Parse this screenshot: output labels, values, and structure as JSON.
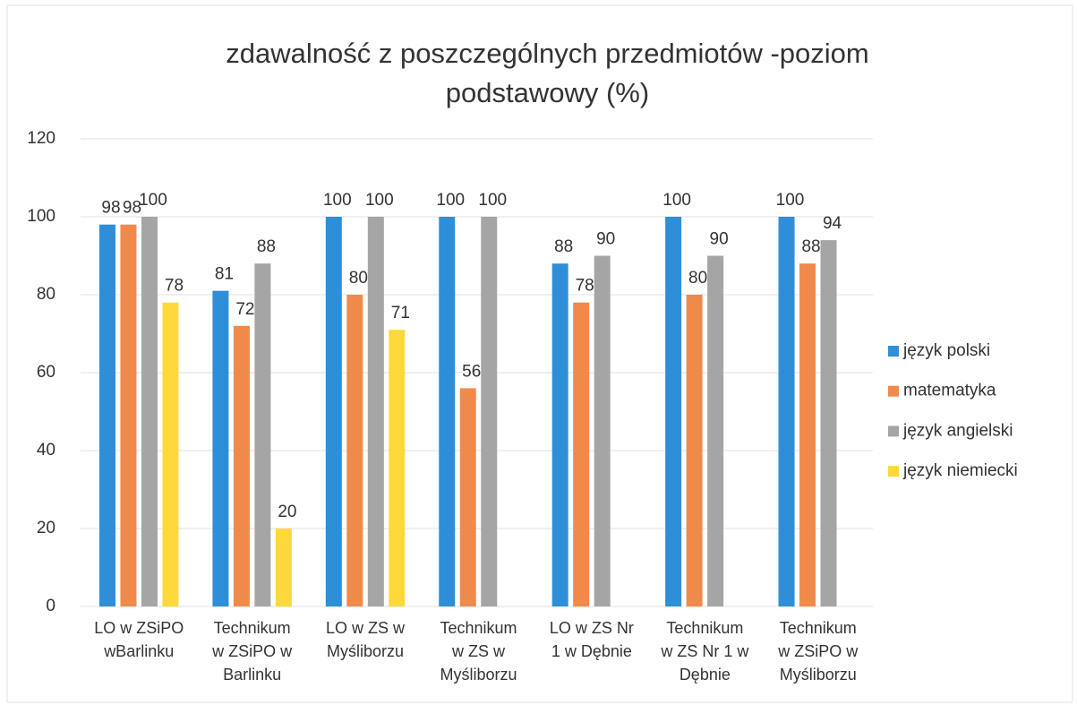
{
  "chart_data": {
    "type": "bar",
    "title": "zdawalność z poszczególnych przedmiotów -poziom\npodstawowy (%)",
    "categories": [
      "LO w ZSiPO\nwBarlinku",
      "Technikum\nw ZSiPO w\nBarlinku",
      "LO w ZS w\nMyśliborzu",
      "Technikum\nw ZS w\nMyśliborzu",
      "LO w ZS Nr\n1 w Dębnie",
      "Technikum\nw ZS Nr 1 w\nDębnie",
      "Technikum\nw ZSiPO w\nMyśliborzu"
    ],
    "series": [
      {
        "name": "język polski",
        "color": "#2e8fd8",
        "values": [
          98,
          81,
          100,
          100,
          88,
          100,
          100
        ]
      },
      {
        "name": "matematyka",
        "color": "#f08a4b",
        "values": [
          98,
          72,
          80,
          56,
          78,
          80,
          88
        ]
      },
      {
        "name": "język angielski",
        "color": "#a5a5a5",
        "values": [
          100,
          88,
          100,
          100,
          90,
          90,
          94
        ]
      },
      {
        "name": "język niemiecki",
        "color": "#ffd93b",
        "values": [
          78,
          20,
          71,
          null,
          null,
          null,
          null
        ]
      }
    ],
    "ylim": [
      0,
      120
    ],
    "yticks": [
      0,
      20,
      40,
      60,
      80,
      100,
      120
    ],
    "grid": true,
    "legend": "right"
  }
}
